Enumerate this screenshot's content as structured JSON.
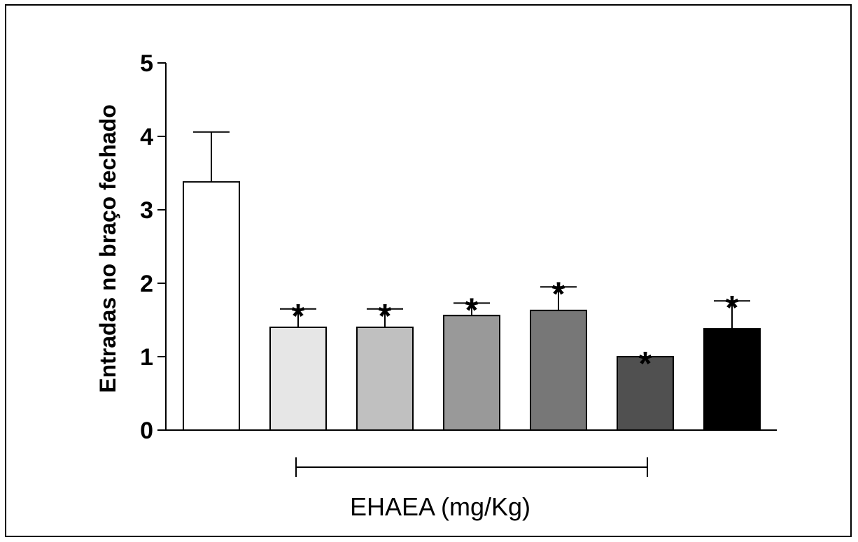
{
  "chart_data": {
    "type": "bar",
    "title": "",
    "xlabel": "",
    "ylabel": "Entradas no braço fechado",
    "ylim": [
      0,
      5
    ],
    "yticks": [
      "0",
      "1",
      "2",
      "3",
      "4",
      "5"
    ],
    "grid": false,
    "bars": [
      {
        "value": 3.38,
        "error": 0.68,
        "color": "#ffffff",
        "significance": ""
      },
      {
        "value": 1.4,
        "error": 0.25,
        "color": "#e6e6e6",
        "significance": "*"
      },
      {
        "value": 1.4,
        "error": 0.25,
        "color": "#c0c0c0",
        "significance": "*"
      },
      {
        "value": 1.56,
        "error": 0.17,
        "color": "#999999",
        "significance": "*"
      },
      {
        "value": 1.63,
        "error": 0.32,
        "color": "#777777",
        "significance": "*"
      },
      {
        "value": 1.0,
        "error": 0.0,
        "color": "#505050",
        "significance": "*"
      },
      {
        "value": 1.38,
        "error": 0.38,
        "color": "#000000",
        "significance": "*"
      }
    ],
    "group_bracket": {
      "label": "EHAEA (mg/Kg)",
      "from_bar": 1,
      "to_bar": 5
    }
  }
}
